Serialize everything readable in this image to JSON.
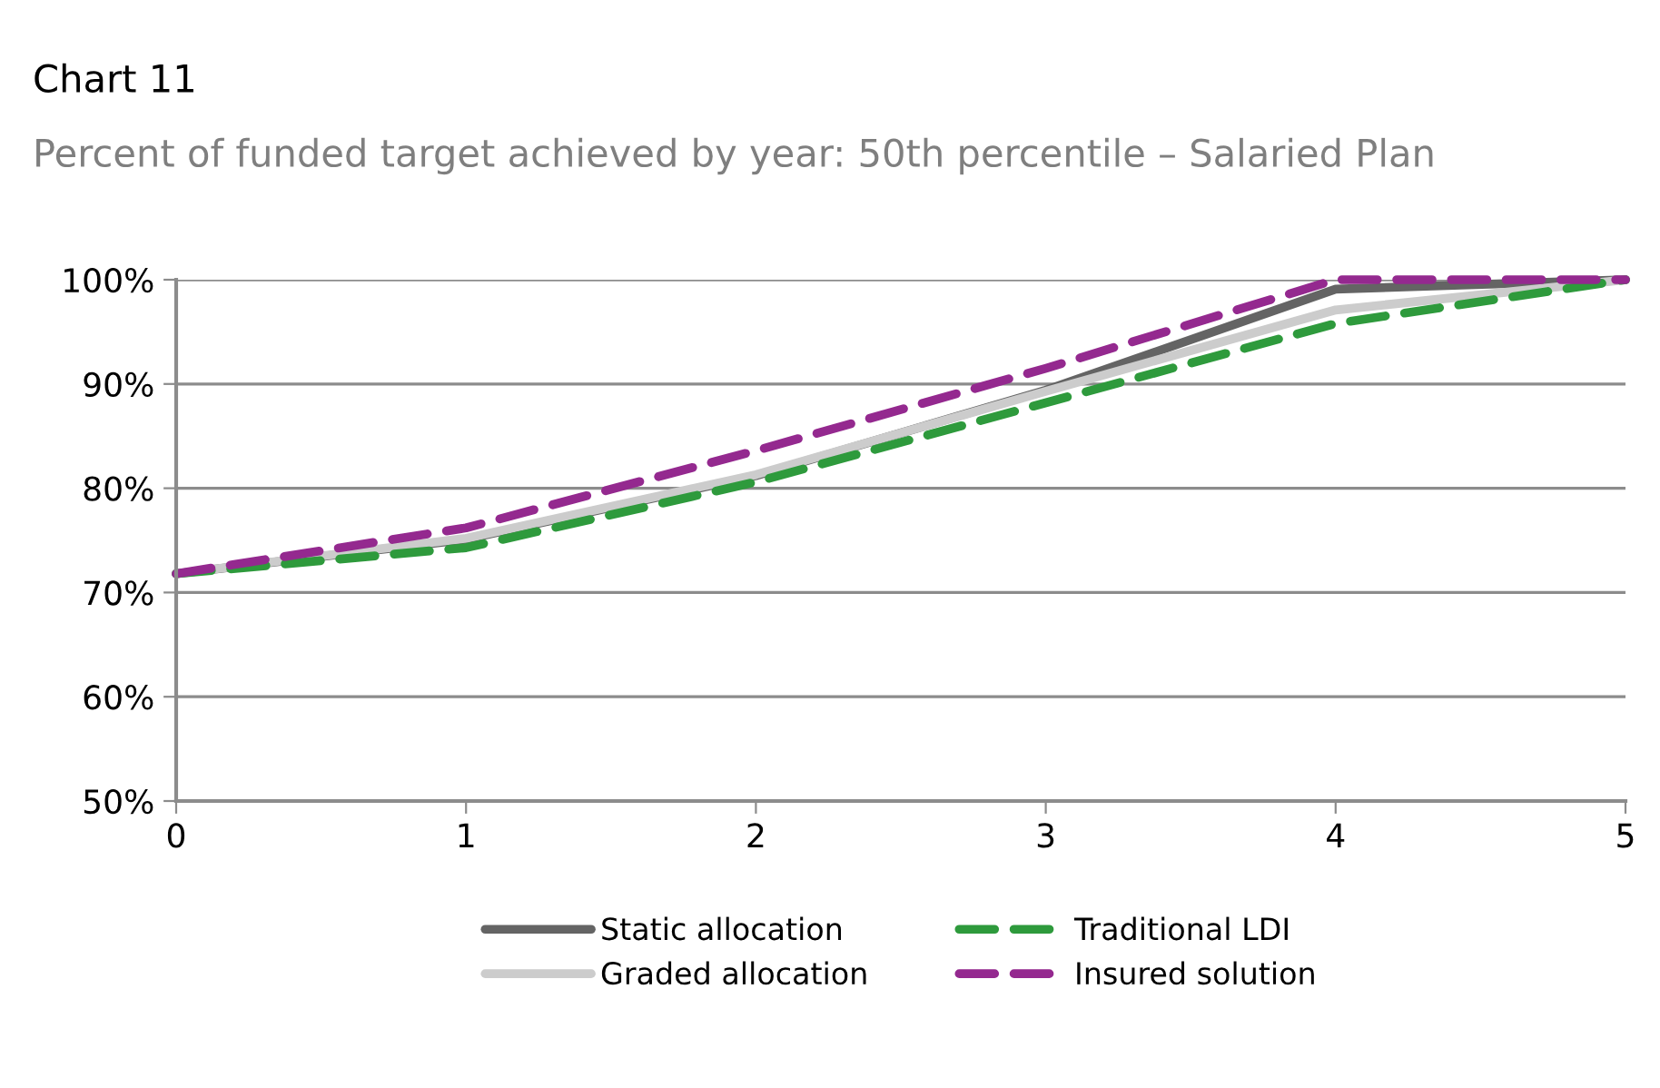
{
  "chart_data": {
    "type": "line",
    "title": "Chart 11",
    "subtitle": "Percent of funded target achieved by year: 50th percentile – Salaried Plan",
    "x": [
      0,
      1,
      2,
      3,
      4,
      5
    ],
    "series": [
      {
        "name": "Static allocation",
        "color": "#646464",
        "line_style": "solid",
        "values": [
          71.8,
          75.1,
          81.2,
          89.4,
          99.1,
          100
        ]
      },
      {
        "name": "Graded allocation",
        "color": "#cccccc",
        "line_style": "solid",
        "values": [
          71.8,
          75.2,
          81.3,
          89.3,
          97.1,
          100
        ]
      },
      {
        "name": "Traditional LDI",
        "color": "#2e9a3c",
        "line_style": "dashed",
        "values": [
          71.8,
          74.3,
          80.6,
          88.2,
          95.8,
          100
        ]
      },
      {
        "name": "Insured solution",
        "color": "#94298f",
        "line_style": "dashed",
        "values": [
          71.8,
          76.2,
          83.6,
          91.5,
          100,
          100
        ]
      }
    ],
    "xlim": [
      0,
      5
    ],
    "xticks": [
      0,
      1,
      2,
      3,
      4,
      5
    ],
    "ylim": [
      50,
      100
    ],
    "yticks": [
      {
        "value": 50,
        "label": "50%"
      },
      {
        "value": 60,
        "label": "60%"
      },
      {
        "value": 70,
        "label": "70%"
      },
      {
        "value": 80,
        "label": "80%"
      },
      {
        "value": 90,
        "label": "90%"
      },
      {
        "value": 100,
        "label": "100%"
      }
    ],
    "grid": "y",
    "legend": "bottom",
    "marker": "none"
  }
}
